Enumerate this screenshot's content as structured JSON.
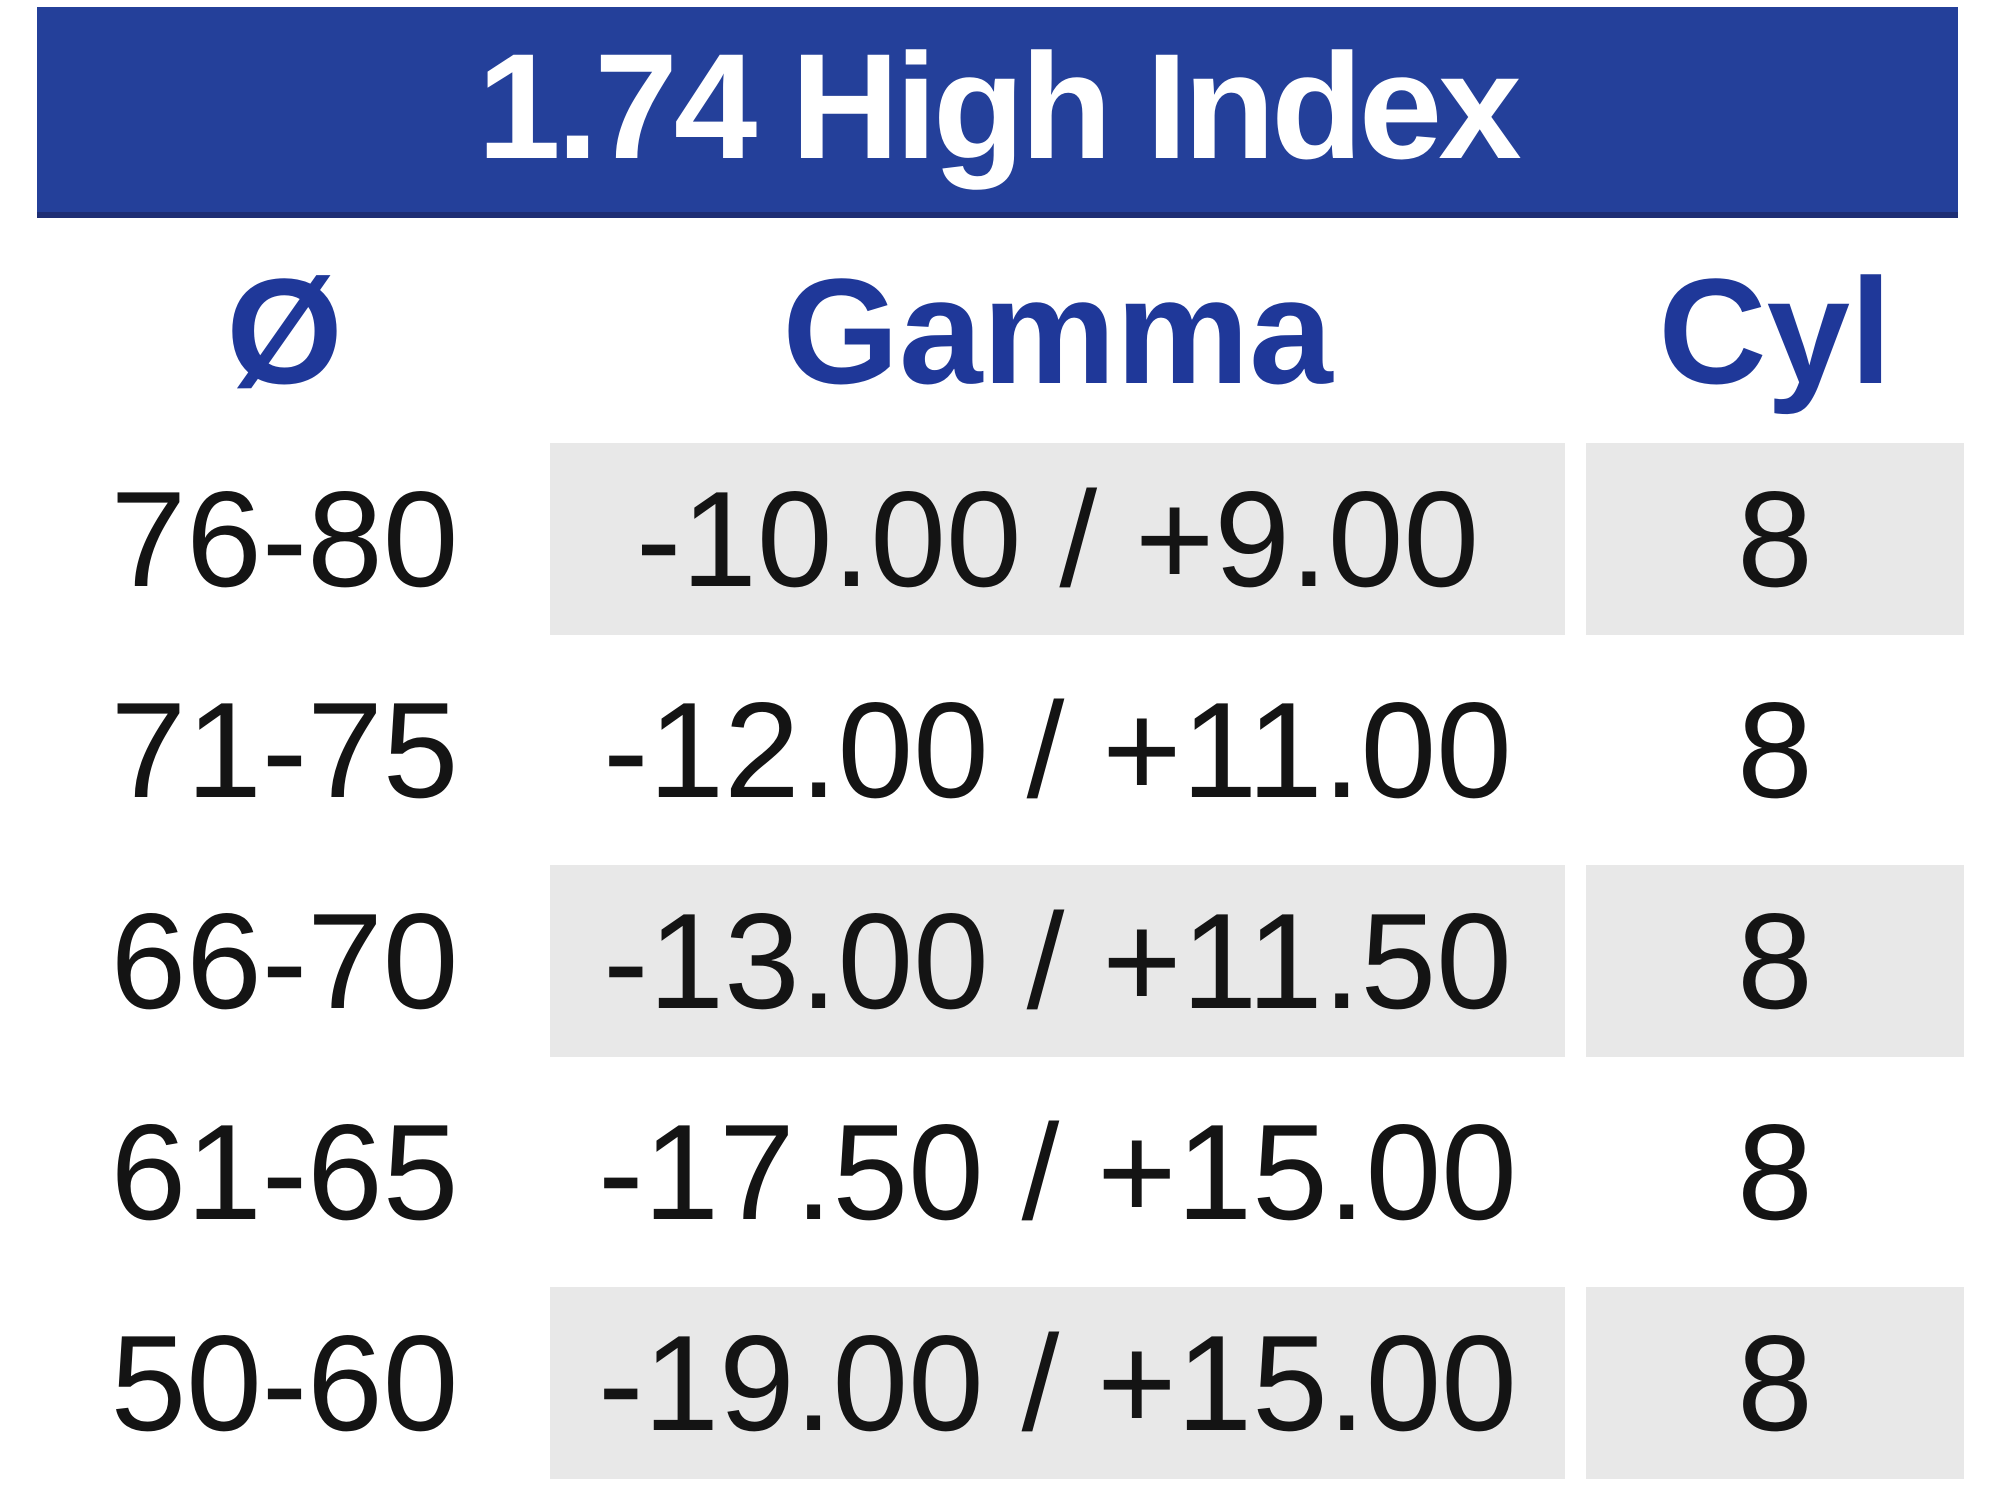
{
  "title": "1.74 High Index",
  "columns": {
    "diameter": "Ø",
    "gamma": "Gamma",
    "cyl": "Cyl"
  },
  "rows": [
    {
      "diameter": "76-80",
      "gamma": "-10.00 / +9.00",
      "cyl": "8",
      "shaded": true
    },
    {
      "diameter": "71-75",
      "gamma": "-12.00 / +11.00",
      "cyl": "8",
      "shaded": false
    },
    {
      "diameter": "66-70",
      "gamma": "-13.00 / +11.50",
      "cyl": "8",
      "shaded": true
    },
    {
      "diameter": "61-65",
      "gamma": "-17.50 / +15.00",
      "cyl": "8",
      "shaded": false
    },
    {
      "diameter": "50-60",
      "gamma": "-19.00 / +15.00",
      "cyl": "8",
      "shaded": true
    }
  ],
  "colors": {
    "title_bar_background": "#24409a",
    "title_bar_border_bottom": "#1e2e74",
    "title_text": "#ffffff",
    "column_header_text": "#1f3899",
    "row_shade": "#e8e8e8",
    "data_text": "#141414"
  },
  "chart_data": {
    "type": "table",
    "title": "1.74 High Index",
    "columns": [
      "Ø",
      "Gamma",
      "Cyl"
    ],
    "rows": [
      [
        "76-80",
        "-10.00 / +9.00",
        "8"
      ],
      [
        "71-75",
        "-12.00 / +11.00",
        "8"
      ],
      [
        "66-70",
        "-13.00 / +11.50",
        "8"
      ],
      [
        "61-65",
        "-17.50 / +15.00",
        "8"
      ],
      [
        "50-60",
        "-19.00 / +15.00",
        "8"
      ]
    ],
    "layout_hints": {
      "shaded_row_indices": [
        0,
        2,
        4
      ],
      "shaded_columns": [
        "Gamma",
        "Cyl"
      ],
      "first_column_unshaded": true,
      "title_bar": "white bold text centered on blue bar"
    }
  }
}
